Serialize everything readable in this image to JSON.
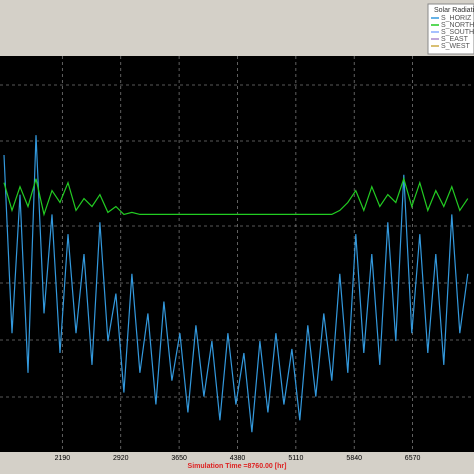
{
  "chart_data": {
    "type": "line",
    "legend": {
      "title": "Solar Radiatio",
      "entries": [
        "S_HORIZ",
        "S_NORTH",
        "S_SOUTH",
        "S_EAST",
        "S_WEST"
      ],
      "colors": [
        "#3399dd",
        "#22cc22",
        "#88aaff",
        "#aa88cc",
        "#ccaa44"
      ]
    },
    "x_label": "Simulation Time =8760.00 [hr]",
    "xlim": [
      1410,
      7338
    ],
    "xticks": [
      2190,
      2920,
      3650,
      4380,
      5110,
      5840,
      6570
    ],
    "ylim": [
      0,
      100
    ],
    "x": [
      1460,
      1560,
      1660,
      1760,
      1860,
      1960,
      2060,
      2160,
      2260,
      2360,
      2460,
      2560,
      2660,
      2760,
      2860,
      2960,
      3060,
      3160,
      3260,
      3360,
      3460,
      3560,
      3660,
      3760,
      3860,
      3960,
      4060,
      4160,
      4260,
      4360,
      4460,
      4560,
      4660,
      4760,
      4860,
      4960,
      5060,
      5160,
      5260,
      5360,
      5460,
      5560,
      5660,
      5760,
      5860,
      5960,
      6060,
      6160,
      6260,
      6360,
      6460,
      6560,
      6660,
      6760,
      6860,
      6960,
      7060,
      7160,
      7260
    ],
    "series": [
      {
        "color": "#3399dd",
        "values": [
          75,
          30,
          65,
          20,
          80,
          35,
          60,
          25,
          55,
          30,
          50,
          22,
          58,
          28,
          40,
          15,
          45,
          20,
          35,
          12,
          38,
          18,
          30,
          10,
          32,
          14,
          28,
          8,
          30,
          12,
          25,
          5,
          28,
          10,
          30,
          12,
          26,
          8,
          32,
          14,
          35,
          18,
          45,
          20,
          55,
          25,
          50,
          22,
          58,
          28,
          70,
          30,
          55,
          25,
          50,
          22,
          60,
          30,
          45
        ]
      },
      {
        "color": "#22cc22",
        "values": [
          68,
          61,
          67,
          62,
          69,
          60,
          66,
          63,
          68,
          61,
          64,
          62,
          65,
          60.5,
          62,
          60,
          60.5,
          60,
          60,
          60,
          60,
          60,
          60,
          60,
          60,
          60,
          60,
          60,
          60,
          60,
          60,
          60,
          60,
          60,
          60,
          60,
          60,
          60,
          60,
          60,
          60,
          60,
          61,
          63,
          66,
          61,
          67,
          62,
          65,
          63,
          69,
          62,
          68,
          61,
          66,
          62,
          67,
          61,
          64
        ]
      }
    ]
  }
}
